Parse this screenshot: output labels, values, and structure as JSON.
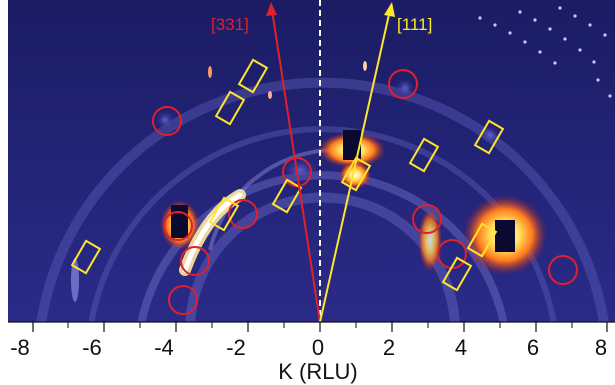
{
  "figure": {
    "arrows": [
      {
        "label": "[331]",
        "color": "#e0202a"
      },
      {
        "label": "[111]",
        "color": "#ffe62a"
      }
    ],
    "axis": {
      "title": "K (RLU)",
      "ticks": [
        "-8",
        "-6",
        "-4",
        "-2",
        "0",
        "2",
        "4",
        "6",
        "8"
      ]
    },
    "colors": {
      "background": "#1f2070",
      "circle_marker": "#e0202a",
      "diamond_marker": "#ffe62a",
      "guide_line": "#ffffff"
    }
  }
}
